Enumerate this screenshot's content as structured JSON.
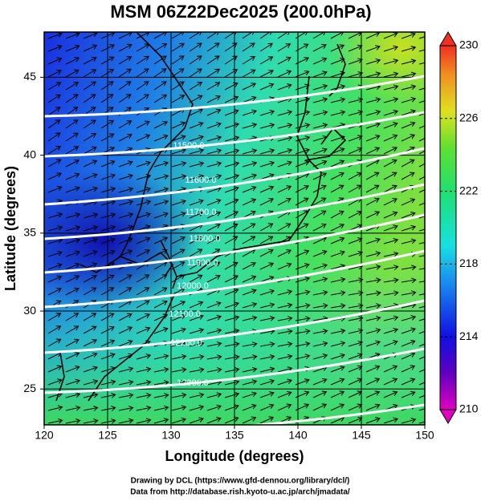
{
  "title": "MSM 06Z22Dec2025 (200.0hPa)",
  "map": {
    "xlabel": "Longitude (degrees)",
    "ylabel": "Latitude  (degrees)",
    "xlim": [
      120,
      150
    ],
    "ylim": [
      22.7,
      47.9
    ],
    "xticks": [
      120,
      125,
      130,
      135,
      140,
      145,
      150
    ],
    "yticks": [
      25,
      30,
      35,
      40,
      45
    ],
    "contour_labels": [
      "11500.0",
      "11600.0",
      "11700.0",
      "11800.0",
      "11900.0",
      "12000.0",
      "12100.0",
      "12200.0",
      "12300.0"
    ]
  },
  "colorbar": {
    "lim": [
      210,
      230
    ],
    "ticks": [
      210,
      214,
      218,
      222,
      226,
      230
    ]
  },
  "footer": [
    "Drawing by DCL (https://www.gfd-dennou.org/library/dcl/)",
    "Data from http://database.rish.kyoto-u.ac.jp/arch/jmadata/"
  ]
}
